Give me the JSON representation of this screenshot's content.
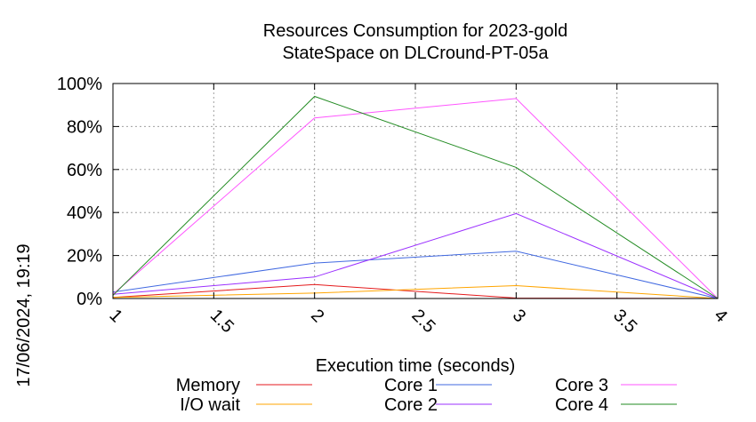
{
  "chart_data": {
    "type": "line",
    "title": [
      "Resources Consumption for 2023-gold",
      "StateSpace on DLCround-PT-05a"
    ],
    "xlabel": "Execution time (seconds)",
    "ylabel": "",
    "xlim": [
      1,
      4
    ],
    "ylim": [
      0,
      100
    ],
    "x_ticks": [
      "1",
      "1.5",
      "2",
      "2.5",
      "3",
      "3.5",
      "4"
    ],
    "y_ticks": [
      "0%",
      "20%",
      "40%",
      "60%",
      "80%",
      "100%"
    ],
    "x": [
      1,
      2,
      3,
      4
    ],
    "grid": true,
    "legend_position": "bottom",
    "series": [
      {
        "name": "Memory",
        "color": "#e41a1c",
        "values": [
          0.5,
          6.5,
          0.2,
          0
        ]
      },
      {
        "name": "I/O wait",
        "color": "#ffa500",
        "values": [
          0.5,
          2.5,
          6,
          0
        ]
      },
      {
        "name": "Core 1",
        "color": "#4169e1",
        "values": [
          3,
          16.5,
          22,
          0
        ]
      },
      {
        "name": "Core 2",
        "color": "#9b30ff",
        "values": [
          2,
          10,
          39.5,
          0
        ]
      },
      {
        "name": "Core 3",
        "color": "#ff55ff",
        "values": [
          2,
          84,
          93,
          0
        ]
      },
      {
        "name": "Core 4",
        "color": "#228b22",
        "values": [
          1.5,
          94,
          61,
          0
        ]
      }
    ]
  },
  "side_label": "17/06/2024, 19:19"
}
